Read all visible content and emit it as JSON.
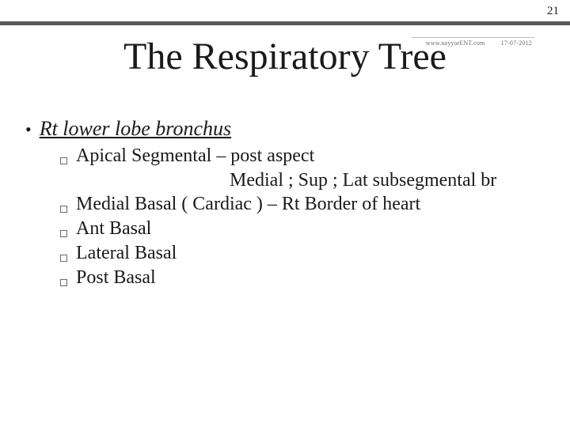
{
  "page_number": "21",
  "meta": {
    "site": "www.nayyarENT.com",
    "date": "17-07-2012"
  },
  "title": "The Respiratory Tree",
  "main": {
    "bullet": "•",
    "text": "Rt lower lobe bronchus"
  },
  "sub_bullet": "▫",
  "subs": [
    "Apical Segmental – post aspect",
    "Medial ; Sup ; Lat subsegmental br",
    "Medial Basal ( Cardiac ) – Rt Border of heart",
    "Ant Basal",
    "Lateral Basal",
    "Post Basal"
  ],
  "colors": {
    "top_bar": "#595959",
    "text": "#1a1a1a",
    "meta_text": "#6a6a6a",
    "background": "#ffffff"
  },
  "fontsizes": {
    "title": 48,
    "main": 26,
    "sub": 24,
    "page_number": 15,
    "meta": 8
  }
}
